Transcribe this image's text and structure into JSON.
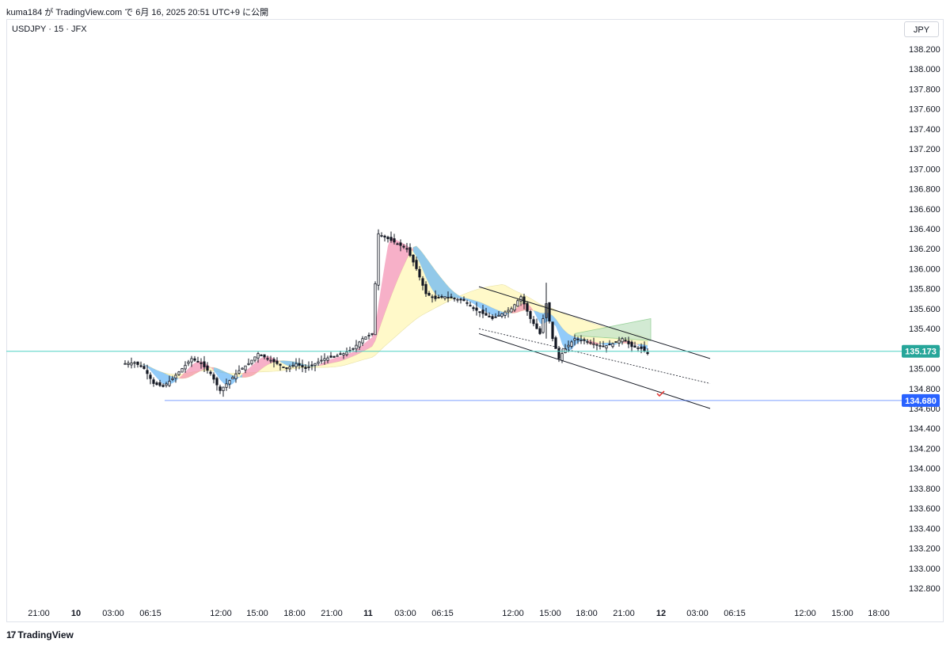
{
  "header": {
    "publish_line": "kuma184 が TradingView.com で 6月 16, 2025 20:51 UTC+9 に公開"
  },
  "symbol_line": "USDJPY · 15 · JFX",
  "currency_button": "JPY",
  "branding": {
    "logo_text": "TradingView",
    "logo_mark": "17"
  },
  "colors": {
    "candle": "#131722",
    "current_price_line": "#4dd0c4",
    "current_price_tag": "#26a69a",
    "target_line": "#2962ff",
    "target_tag": "#2962ff",
    "channel": "#131722",
    "band_pink": "#f48fb1",
    "band_blue": "#64b5f6",
    "band_yellow": "#fff9c4",
    "band_green": "#c8e6c9",
    "check_mark": "#e53935"
  },
  "chart_data": {
    "type": "candlestick",
    "symbol": "USDJPY",
    "timeframe": "15",
    "source": "JFX",
    "price_axis": {
      "ticks": [
        "138.200",
        "138.000",
        "137.800",
        "137.600",
        "137.400",
        "137.200",
        "137.000",
        "136.800",
        "136.600",
        "136.400",
        "136.200",
        "136.000",
        "135.800",
        "135.600",
        "135.400",
        "135.200",
        "135.000",
        "134.800",
        "134.600",
        "134.400",
        "134.200",
        "134.000",
        "133.800",
        "133.600",
        "133.400",
        "133.200",
        "133.000",
        "132.800"
      ],
      "range": [
        132.8,
        138.2
      ]
    },
    "time_axis": {
      "ticks": [
        "21:00",
        "10",
        "03:00",
        "06:15",
        "12:00",
        "15:00",
        "18:00",
        "21:00",
        "11",
        "03:00",
        "06:15",
        "12:00",
        "15:00",
        "18:00",
        "21:00",
        "12",
        "03:00",
        "06:15",
        "12:00",
        "15:00",
        "18:00"
      ],
      "bold_ticks": [
        "10",
        "11",
        "12"
      ]
    },
    "current_price": "135.173",
    "target_price": "134.680",
    "price_path": [
      [
        0,
        135.05
      ],
      [
        3,
        135.06
      ],
      [
        6,
        135.0
      ],
      [
        9,
        134.85
      ],
      [
        12,
        134.82
      ],
      [
        15,
        134.9
      ],
      [
        18,
        135.0
      ],
      [
        21,
        135.1
      ],
      [
        24,
        135.05
      ],
      [
        27,
        134.95
      ],
      [
        30,
        134.78
      ],
      [
        33,
        134.88
      ],
      [
        36,
        134.98
      ],
      [
        39,
        135.05
      ],
      [
        42,
        135.15
      ],
      [
        45,
        135.1
      ],
      [
        48,
        135.05
      ],
      [
        51,
        135.0
      ],
      [
        54,
        135.05
      ],
      [
        57,
        135.0
      ],
      [
        60,
        135.05
      ],
      [
        63,
        135.1
      ],
      [
        66,
        135.12
      ],
      [
        69,
        135.15
      ],
      [
        72,
        135.2
      ],
      [
        75,
        135.3
      ],
      [
        78,
        135.35
      ],
      [
        80,
        136.35
      ],
      [
        83,
        136.3
      ],
      [
        86,
        136.25
      ],
      [
        89,
        136.2
      ],
      [
        92,
        136.0
      ],
      [
        95,
        135.75
      ],
      [
        98,
        135.7
      ],
      [
        101,
        135.72
      ],
      [
        104,
        135.7
      ],
      [
        107,
        135.68
      ],
      [
        110,
        135.6
      ],
      [
        113,
        135.55
      ],
      [
        116,
        135.5
      ],
      [
        119,
        135.55
      ],
      [
        122,
        135.6
      ],
      [
        125,
        135.72
      ],
      [
        128,
        135.5
      ],
      [
        131,
        135.35
      ],
      [
        133,
        135.65
      ],
      [
        135,
        135.3
      ],
      [
        137,
        135.1
      ],
      [
        139,
        135.2
      ],
      [
        142,
        135.3
      ],
      [
        145,
        135.28
      ],
      [
        148,
        135.25
      ],
      [
        151,
        135.22
      ],
      [
        154,
        135.25
      ],
      [
        157,
        135.3
      ],
      [
        160,
        135.22
      ],
      [
        163,
        135.2
      ],
      [
        165,
        135.15
      ]
    ],
    "channel": {
      "upper": {
        "from_price": 135.82,
        "to_price": 135.1
      },
      "middle": {
        "from_price": 135.4,
        "to_price": 134.85
      },
      "lower": {
        "from_price": 135.35,
        "to_price": 134.6
      }
    },
    "horizontal_lines": [
      {
        "label": "current",
        "price": 135.173
      },
      {
        "label": "target",
        "price": 134.68
      }
    ]
  }
}
